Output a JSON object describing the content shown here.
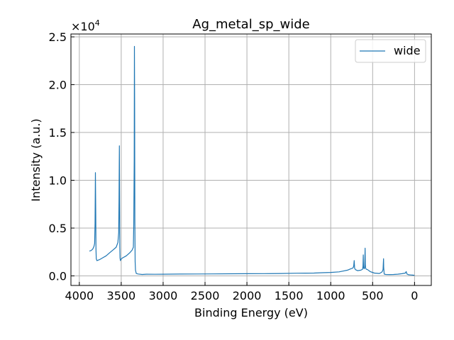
{
  "chart_data": {
    "type": "line",
    "title": "Ag_metal_sp_wide",
    "xlabel": "Binding Energy (eV)",
    "ylabel": "Intensity (a.u.)",
    "xlim": [
      4100,
      -200
    ],
    "ylim": [
      -1000,
      25300
    ],
    "x_reversed": true,
    "grid": true,
    "legend_position": "top-right",
    "y_offset_text": "×10",
    "y_offset_exponent": "4",
    "x_ticks": [
      {
        "value": 4000,
        "label": "4000"
      },
      {
        "value": 3500,
        "label": "3500"
      },
      {
        "value": 3000,
        "label": "3000"
      },
      {
        "value": 2500,
        "label": "2500"
      },
      {
        "value": 2000,
        "label": "2000"
      },
      {
        "value": 1500,
        "label": "1500"
      },
      {
        "value": 1000,
        "label": "1000"
      },
      {
        "value": 500,
        "label": "500"
      },
      {
        "value": 0,
        "label": "0"
      }
    ],
    "y_ticks": [
      {
        "value": 0,
        "label": "0.0"
      },
      {
        "value": 5000,
        "label": "0.5"
      },
      {
        "value": 10000,
        "label": "1.0"
      },
      {
        "value": 15000,
        "label": "1.5"
      },
      {
        "value": 20000,
        "label": "2.0"
      },
      {
        "value": 25000,
        "label": "2.5"
      }
    ],
    "series": [
      {
        "name": "wide",
        "color": "#1f77b4",
        "x": [
          3880,
          3860,
          3840,
          3825,
          3817,
          3812,
          3808,
          3804,
          3801,
          3798,
          3790,
          3760,
          3720,
          3680,
          3640,
          3600,
          3560,
          3540,
          3530,
          3526,
          3522,
          3519,
          3517,
          3514,
          3510,
          3505,
          3490,
          3440,
          3400,
          3370,
          3355,
          3350,
          3345,
          3342,
          3340,
          3337,
          3334,
          3330,
          3320,
          3300,
          3250,
          3200,
          3100,
          3000,
          2800,
          2600,
          2400,
          2200,
          2000,
          1800,
          1600,
          1400,
          1300,
          1200,
          1100,
          1000,
          900,
          800,
          760,
          740,
          730,
          725,
          720,
          715,
          705,
          680,
          640,
          620,
          615,
          612,
          609,
          606,
          600,
          596,
          593,
          590,
          587,
          584,
          575,
          560,
          530,
          480,
          420,
          390,
          380,
          376,
          373,
          370,
          368,
          365,
          363,
          360,
          340,
          300,
          250,
          200,
          150,
          110,
          100,
          95,
          90,
          70,
          40,
          20,
          0
        ],
        "y": [
          2600,
          2650,
          2800,
          3100,
          3400,
          5500,
          10800,
          6500,
          2800,
          1800,
          1600,
          1700,
          1900,
          2100,
          2400,
          2700,
          3000,
          3500,
          4500,
          8000,
          13600,
          8000,
          3000,
          1900,
          1600,
          1700,
          1850,
          2100,
          2400,
          2700,
          3000,
          5500,
          12000,
          24000,
          18000,
          6000,
          1500,
          600,
          250,
          200,
          150,
          180,
          170,
          180,
          190,
          200,
          210,
          220,
          230,
          240,
          250,
          280,
          290,
          300,
          330,
          360,
          420,
          600,
          750,
          800,
          900,
          1100,
          1600,
          800,
          650,
          550,
          600,
          700,
          1000,
          2200,
          1000,
          800,
          750,
          900,
          1600,
          2900,
          1200,
          800,
          700,
          650,
          450,
          300,
          250,
          400,
          550,
          700,
          1200,
          1800,
          900,
          500,
          250,
          180,
          150,
          140,
          150,
          180,
          230,
          300,
          450,
          320,
          200,
          120,
          100,
          80,
          60
        ]
      }
    ]
  }
}
